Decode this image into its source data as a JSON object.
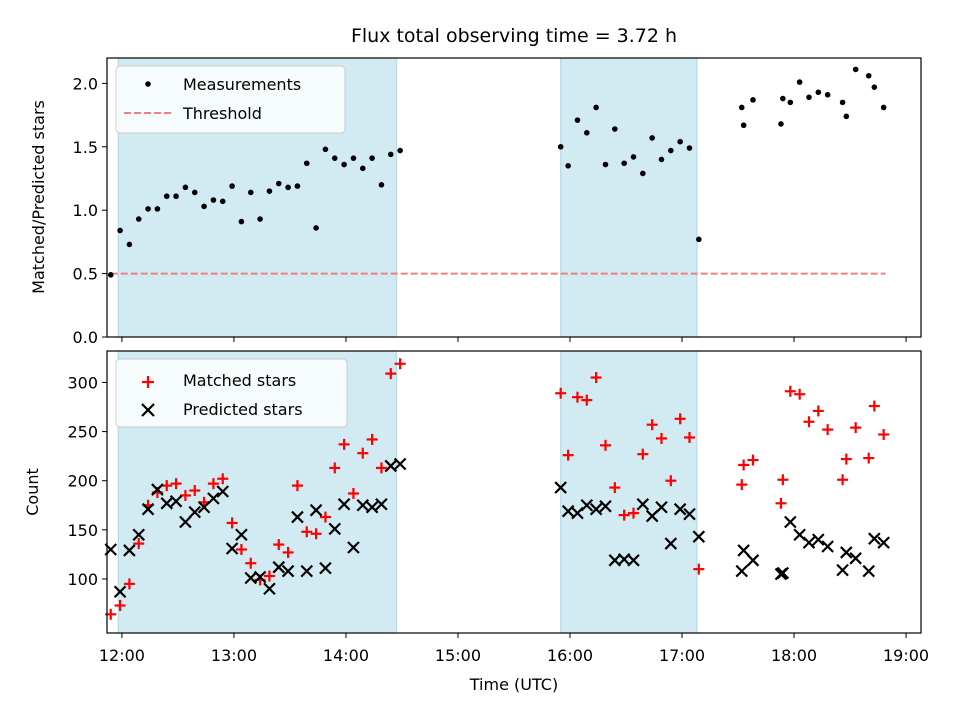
{
  "chart_data": [
    {
      "type": "scatter",
      "title": "Flux total observing time = 3.72 h",
      "ylabel": "Matched/Predicted stars",
      "xlabel": "",
      "ylim": [
        0,
        2.2
      ],
      "xlim": [
        "11:52",
        "19:08"
      ],
      "yticks": [
        "0.0",
        "0.5",
        "1.0",
        "1.5",
        "2.0"
      ],
      "shaded_intervals": [
        [
          "11:58",
          "14:27"
        ],
        [
          "15:55",
          "17:08"
        ]
      ],
      "legend": {
        "placement": "top-left",
        "entries": [
          "Measurements",
          "Threshold"
        ]
      },
      "colors": {
        "measurements": "#000000",
        "threshold": "#f08080",
        "shade": "#add8e6"
      },
      "threshold": {
        "y": 0.5,
        "x_start": "11:54",
        "x_end": "18:49"
      },
      "series": [
        {
          "name": "Measurements",
          "points": [
            [
              "11:54",
              0.49
            ],
            [
              "11:59",
              0.84
            ],
            [
              "12:04",
              0.73
            ],
            [
              "12:09",
              0.93
            ],
            [
              "12:14",
              1.01
            ],
            [
              "12:19",
              1.01
            ],
            [
              "12:24",
              1.11
            ],
            [
              "12:29",
              1.11
            ],
            [
              "12:34",
              1.18
            ],
            [
              "12:39",
              1.14
            ],
            [
              "12:44",
              1.03
            ],
            [
              "12:49",
              1.08
            ],
            [
              "12:54",
              1.07
            ],
            [
              "12:59",
              1.19
            ],
            [
              "13:04",
              0.91
            ],
            [
              "13:09",
              1.14
            ],
            [
              "13:14",
              0.93
            ],
            [
              "13:19",
              1.15
            ],
            [
              "13:24",
              1.21
            ],
            [
              "13:29",
              1.18
            ],
            [
              "13:34",
              1.19
            ],
            [
              "13:39",
              1.37
            ],
            [
              "13:44",
              0.86
            ],
            [
              "13:49",
              1.48
            ],
            [
              "13:54",
              1.41
            ],
            [
              "13:59",
              1.36
            ],
            [
              "14:04",
              1.41
            ],
            [
              "14:09",
              1.33
            ],
            [
              "14:14",
              1.41
            ],
            [
              "14:19",
              1.2
            ],
            [
              "14:24",
              1.44
            ],
            [
              "14:29",
              1.47
            ],
            [
              "15:55",
              1.5
            ],
            [
              "15:59",
              1.35
            ],
            [
              "16:04",
              1.71
            ],
            [
              "16:09",
              1.61
            ],
            [
              "16:14",
              1.81
            ],
            [
              "16:19",
              1.36
            ],
            [
              "16:24",
              1.64
            ],
            [
              "16:29",
              1.37
            ],
            [
              "16:34",
              1.42
            ],
            [
              "16:39",
              1.29
            ],
            [
              "16:44",
              1.57
            ],
            [
              "16:49",
              1.4
            ],
            [
              "16:54",
              1.47
            ],
            [
              "16:59",
              1.54
            ],
            [
              "17:04",
              1.49
            ],
            [
              "17:09",
              0.77
            ],
            [
              "17:32",
              1.81
            ],
            [
              "17:33",
              1.67
            ],
            [
              "17:38",
              1.87
            ],
            [
              "17:53",
              1.68
            ],
            [
              "17:54",
              1.88
            ],
            [
              "17:58",
              1.85
            ],
            [
              "18:03",
              2.01
            ],
            [
              "18:08",
              1.89
            ],
            [
              "18:13",
              1.93
            ],
            [
              "18:18",
              1.91
            ],
            [
              "18:26",
              1.85
            ],
            [
              "18:28",
              1.74
            ],
            [
              "18:33",
              2.11
            ],
            [
              "18:40",
              2.06
            ],
            [
              "18:43",
              1.97
            ],
            [
              "18:48",
              1.81
            ]
          ]
        }
      ]
    },
    {
      "type": "scatter",
      "title": "",
      "ylabel": "Count",
      "xlabel": "Time (UTC)",
      "ylim": [
        45,
        332
      ],
      "xlim": [
        "11:52",
        "19:08"
      ],
      "yticks": [
        "100",
        "150",
        "200",
        "250",
        "300"
      ],
      "xticks": [
        "12:00",
        "13:00",
        "14:00",
        "15:00",
        "16:00",
        "17:00",
        "18:00",
        "19:00"
      ],
      "shaded_intervals": [
        [
          "11:58",
          "14:27"
        ],
        [
          "15:55",
          "17:08"
        ]
      ],
      "legend": {
        "placement": "top-left",
        "entries": [
          "Matched stars",
          "Predicted stars"
        ]
      },
      "colors": {
        "matched": "#ff0000",
        "predicted": "#000000",
        "shade": "#add8e6"
      },
      "series": [
        {
          "name": "Matched stars",
          "marker": "plus",
          "points": [
            [
              "11:54",
              64
            ],
            [
              "11:59",
              73
            ],
            [
              "12:04",
              95
            ],
            [
              "12:09",
              136
            ],
            [
              "12:14",
              175
            ],
            [
              "12:19",
              188
            ],
            [
              "12:24",
              195
            ],
            [
              "12:29",
              197
            ],
            [
              "12:34",
              185
            ],
            [
              "12:39",
              190
            ],
            [
              "12:44",
              178
            ],
            [
              "12:49",
              197
            ],
            [
              "12:54",
              202
            ],
            [
              "12:59",
              157
            ],
            [
              "13:04",
              130
            ],
            [
              "13:09",
              116
            ],
            [
              "13:14",
              99
            ],
            [
              "13:19",
              103
            ],
            [
              "13:24",
              135
            ],
            [
              "13:29",
              127
            ],
            [
              "13:34",
              195
            ],
            [
              "13:39",
              148
            ],
            [
              "13:44",
              146
            ],
            [
              "13:49",
              163
            ],
            [
              "13:54",
              213
            ],
            [
              "13:59",
              237
            ],
            [
              "14:04",
              187
            ],
            [
              "14:09",
              228
            ],
            [
              "14:14",
              242
            ],
            [
              "14:19",
              213
            ],
            [
              "14:24",
              309
            ],
            [
              "14:29",
              319
            ],
            [
              "15:55",
              289
            ],
            [
              "15:59",
              226
            ],
            [
              "16:04",
              285
            ],
            [
              "16:09",
              282
            ],
            [
              "16:14",
              305
            ],
            [
              "16:19",
              236
            ],
            [
              "16:24",
              193
            ],
            [
              "16:29",
              165
            ],
            [
              "16:34",
              167
            ],
            [
              "16:39",
              227
            ],
            [
              "16:44",
              257
            ],
            [
              "16:49",
              243
            ],
            [
              "16:54",
              200
            ],
            [
              "16:59",
              263
            ],
            [
              "17:04",
              244
            ],
            [
              "17:09",
              110
            ],
            [
              "17:32",
              196
            ],
            [
              "17:33",
              216
            ],
            [
              "17:38",
              221
            ],
            [
              "17:53",
              177
            ],
            [
              "17:54",
              201
            ],
            [
              "17:58",
              291
            ],
            [
              "18:03",
              288
            ],
            [
              "18:08",
              260
            ],
            [
              "18:13",
              271
            ],
            [
              "18:18",
              252
            ],
            [
              "18:26",
              201
            ],
            [
              "18:28",
              222
            ],
            [
              "18:33",
              254
            ],
            [
              "18:40",
              223
            ],
            [
              "18:43",
              276
            ],
            [
              "18:48",
              247
            ]
          ]
        },
        {
          "name": "Predicted stars",
          "marker": "x",
          "points": [
            [
              "11:54",
              130
            ],
            [
              "11:59",
              87
            ],
            [
              "12:04",
              129
            ],
            [
              "12:09",
              145
            ],
            [
              "12:14",
              171
            ],
            [
              "12:19",
              191
            ],
            [
              "12:24",
              177
            ],
            [
              "12:29",
              179
            ],
            [
              "12:34",
              158
            ],
            [
              "12:39",
              168
            ],
            [
              "12:44",
              173
            ],
            [
              "12:49",
              182
            ],
            [
              "12:54",
              189
            ],
            [
              "12:59",
              131
            ],
            [
              "13:04",
              145
            ],
            [
              "13:09",
              101
            ],
            [
              "13:14",
              102
            ],
            [
              "13:19",
              90
            ],
            [
              "13:24",
              112
            ],
            [
              "13:29",
              108
            ],
            [
              "13:34",
              163
            ],
            [
              "13:39",
              108
            ],
            [
              "13:44",
              170
            ],
            [
              "13:49",
              111
            ],
            [
              "13:54",
              151
            ],
            [
              "13:59",
              176
            ],
            [
              "14:04",
              132
            ],
            [
              "14:09",
              175
            ],
            [
              "14:14",
              173
            ],
            [
              "14:19",
              176
            ],
            [
              "14:24",
              215
            ],
            [
              "14:29",
              217
            ],
            [
              "15:55",
              193
            ],
            [
              "15:59",
              169
            ],
            [
              "16:04",
              167
            ],
            [
              "16:09",
              175
            ],
            [
              "16:14",
              171
            ],
            [
              "16:19",
              174
            ],
            [
              "16:24",
              119
            ],
            [
              "16:29",
              120
            ],
            [
              "16:34",
              119
            ],
            [
              "16:39",
              176
            ],
            [
              "16:44",
              164
            ],
            [
              "16:49",
              173
            ],
            [
              "16:54",
              136
            ],
            [
              "16:59",
              171
            ],
            [
              "17:04",
              166
            ],
            [
              "17:09",
              143
            ],
            [
              "17:32",
              108
            ],
            [
              "17:33",
              129
            ],
            [
              "17:38",
              119
            ],
            [
              "17:53",
              105
            ],
            [
              "17:54",
              106
            ],
            [
              "17:58",
              158
            ],
            [
              "18:03",
              145
            ],
            [
              "18:08",
              137
            ],
            [
              "18:13",
              140
            ],
            [
              "18:18",
              133
            ],
            [
              "18:26",
              109
            ],
            [
              "18:28",
              127
            ],
            [
              "18:33",
              121
            ],
            [
              "18:40",
              108
            ],
            [
              "18:43",
              141
            ],
            [
              "18:48",
              137
            ]
          ]
        }
      ]
    }
  ]
}
